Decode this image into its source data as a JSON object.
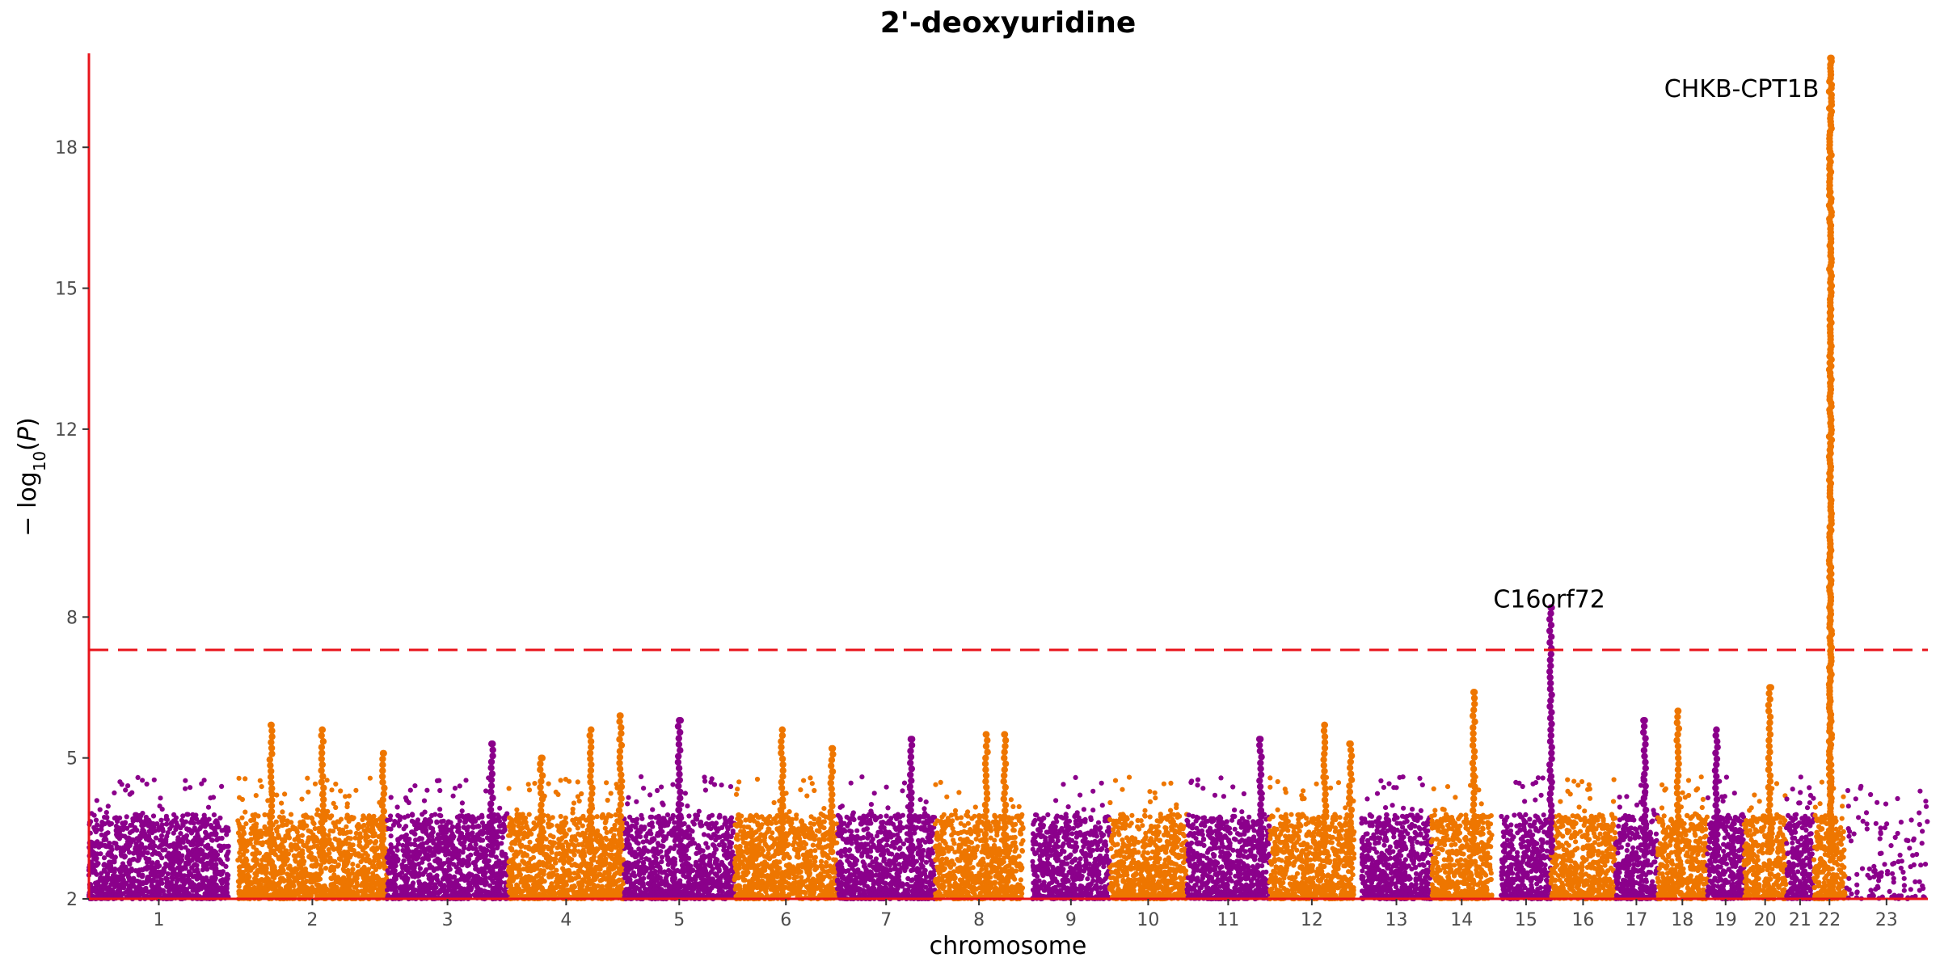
{
  "chart_data": {
    "type": "scatter",
    "subtype": "manhattan",
    "title": "2'-deoxyuridine",
    "xlabel": "chromosome",
    "ylabel_parts": {
      "prefix": "− log",
      "subscript": "10",
      "open": "(",
      "italic": "P",
      "close": ")"
    },
    "ylim": [
      2,
      20
    ],
    "yticks": [
      2,
      5,
      8,
      12,
      15,
      18
    ],
    "significance_threshold": 7.3,
    "colors": {
      "odd": "#8B008B",
      "even": "#EE7600",
      "threshold": "#E8141B",
      "axis": "#E8141B"
    },
    "grid": false,
    "legend": "none",
    "chromosomes": [
      {
        "label": "1",
        "start": 0.0,
        "end": 0.076
      },
      {
        "label": "2",
        "start": 0.081,
        "end": 0.162
      },
      {
        "label": "3",
        "start": 0.162,
        "end": 0.228
      },
      {
        "label": "4",
        "start": 0.228,
        "end": 0.291
      },
      {
        "label": "5",
        "start": 0.291,
        "end": 0.351
      },
      {
        "label": "6",
        "start": 0.351,
        "end": 0.407
      },
      {
        "label": "7",
        "start": 0.407,
        "end": 0.46
      },
      {
        "label": "8",
        "start": 0.46,
        "end": 0.508
      },
      {
        "label": "9",
        "start": 0.513,
        "end": 0.555
      },
      {
        "label": "10",
        "start": 0.555,
        "end": 0.597
      },
      {
        "label": "11",
        "start": 0.597,
        "end": 0.642
      },
      {
        "label": "12",
        "start": 0.642,
        "end": 0.688
      },
      {
        "label": "13",
        "start": 0.692,
        "end": 0.73
      },
      {
        "label": "14",
        "start": 0.73,
        "end": 0.763
      },
      {
        "label": "15",
        "start": 0.768,
        "end": 0.795
      },
      {
        "label": "16",
        "start": 0.795,
        "end": 0.83
      },
      {
        "label": "17",
        "start": 0.83,
        "end": 0.853
      },
      {
        "label": "18",
        "start": 0.853,
        "end": 0.88
      },
      {
        "label": "19",
        "start": 0.88,
        "end": 0.9
      },
      {
        "label": "20",
        "start": 0.9,
        "end": 0.923
      },
      {
        "label": "21",
        "start": 0.923,
        "end": 0.938
      },
      {
        "label": "22",
        "start": 0.938,
        "end": 0.955
      },
      {
        "label": "23",
        "start": 0.955,
        "end": 1.0
      }
    ],
    "peaks": [
      {
        "chrom": "2",
        "x": 0.099,
        "y": 5.7
      },
      {
        "chrom": "2",
        "x": 0.127,
        "y": 5.6
      },
      {
        "chrom": "2",
        "x": 0.16,
        "y": 5.1
      },
      {
        "chrom": "3",
        "x": 0.219,
        "y": 5.3
      },
      {
        "chrom": "4",
        "x": 0.246,
        "y": 5.0
      },
      {
        "chrom": "4",
        "x": 0.273,
        "y": 5.6
      },
      {
        "chrom": "4",
        "x": 0.289,
        "y": 5.9
      },
      {
        "chrom": "5",
        "x": 0.321,
        "y": 5.8
      },
      {
        "chrom": "6",
        "x": 0.377,
        "y": 5.6
      },
      {
        "chrom": "6",
        "x": 0.404,
        "y": 5.2
      },
      {
        "chrom": "7",
        "x": 0.447,
        "y": 5.4
      },
      {
        "chrom": "8",
        "x": 0.488,
        "y": 5.5
      },
      {
        "chrom": "8",
        "x": 0.498,
        "y": 5.5
      },
      {
        "chrom": "11",
        "x": 0.637,
        "y": 5.4
      },
      {
        "chrom": "12",
        "x": 0.672,
        "y": 5.7
      },
      {
        "chrom": "12",
        "x": 0.686,
        "y": 5.3
      },
      {
        "chrom": "14",
        "x": 0.753,
        "y": 6.4
      },
      {
        "chrom": "15",
        "x": 0.795,
        "y": 8.2
      },
      {
        "chrom": "17",
        "x": 0.846,
        "y": 5.8
      },
      {
        "chrom": "18",
        "x": 0.864,
        "y": 6.0
      },
      {
        "chrom": "19",
        "x": 0.885,
        "y": 5.6
      },
      {
        "chrom": "20",
        "x": 0.914,
        "y": 6.5
      },
      {
        "chrom": "22",
        "x": 0.947,
        "y": 19.9
      }
    ],
    "annotations": [
      {
        "text": "C16orf72",
        "x": 0.795,
        "y": 8.2
      },
      {
        "text": "CHKB-CPT1B",
        "x": 0.947,
        "y": 19.9
      }
    ]
  }
}
